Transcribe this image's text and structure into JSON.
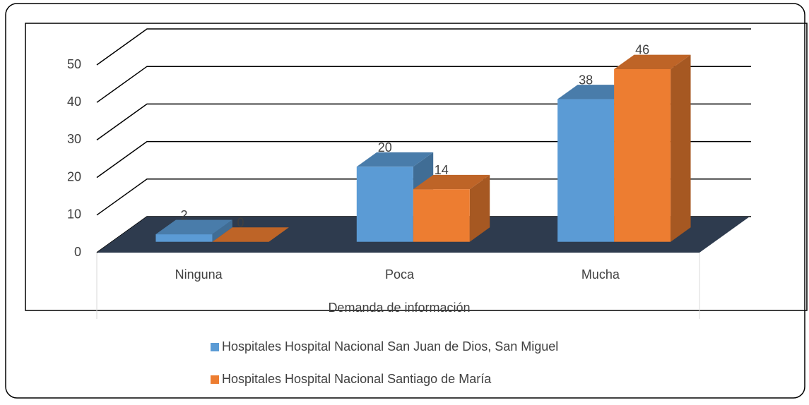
{
  "chart_data": {
    "type": "bar3d",
    "x_label": "Demanda de información",
    "categories": [
      "Ninguna",
      "Poca",
      "Mucha"
    ],
    "series": [
      {
        "name": "Hospitales Hospital Nacional San Juan de Dios, San Miguel",
        "color": "#5b9bd5",
        "values": [
          2,
          20,
          38
        ]
      },
      {
        "name": "Hospitales Hospital Nacional Santiago de María",
        "color": "#ed7d31",
        "values": [
          0,
          14,
          46
        ]
      }
    ],
    "ylim": [
      0,
      50
    ],
    "yticks": [
      0,
      10,
      20,
      30,
      40,
      50
    ],
    "grid": true,
    "legend": "bottom"
  }
}
